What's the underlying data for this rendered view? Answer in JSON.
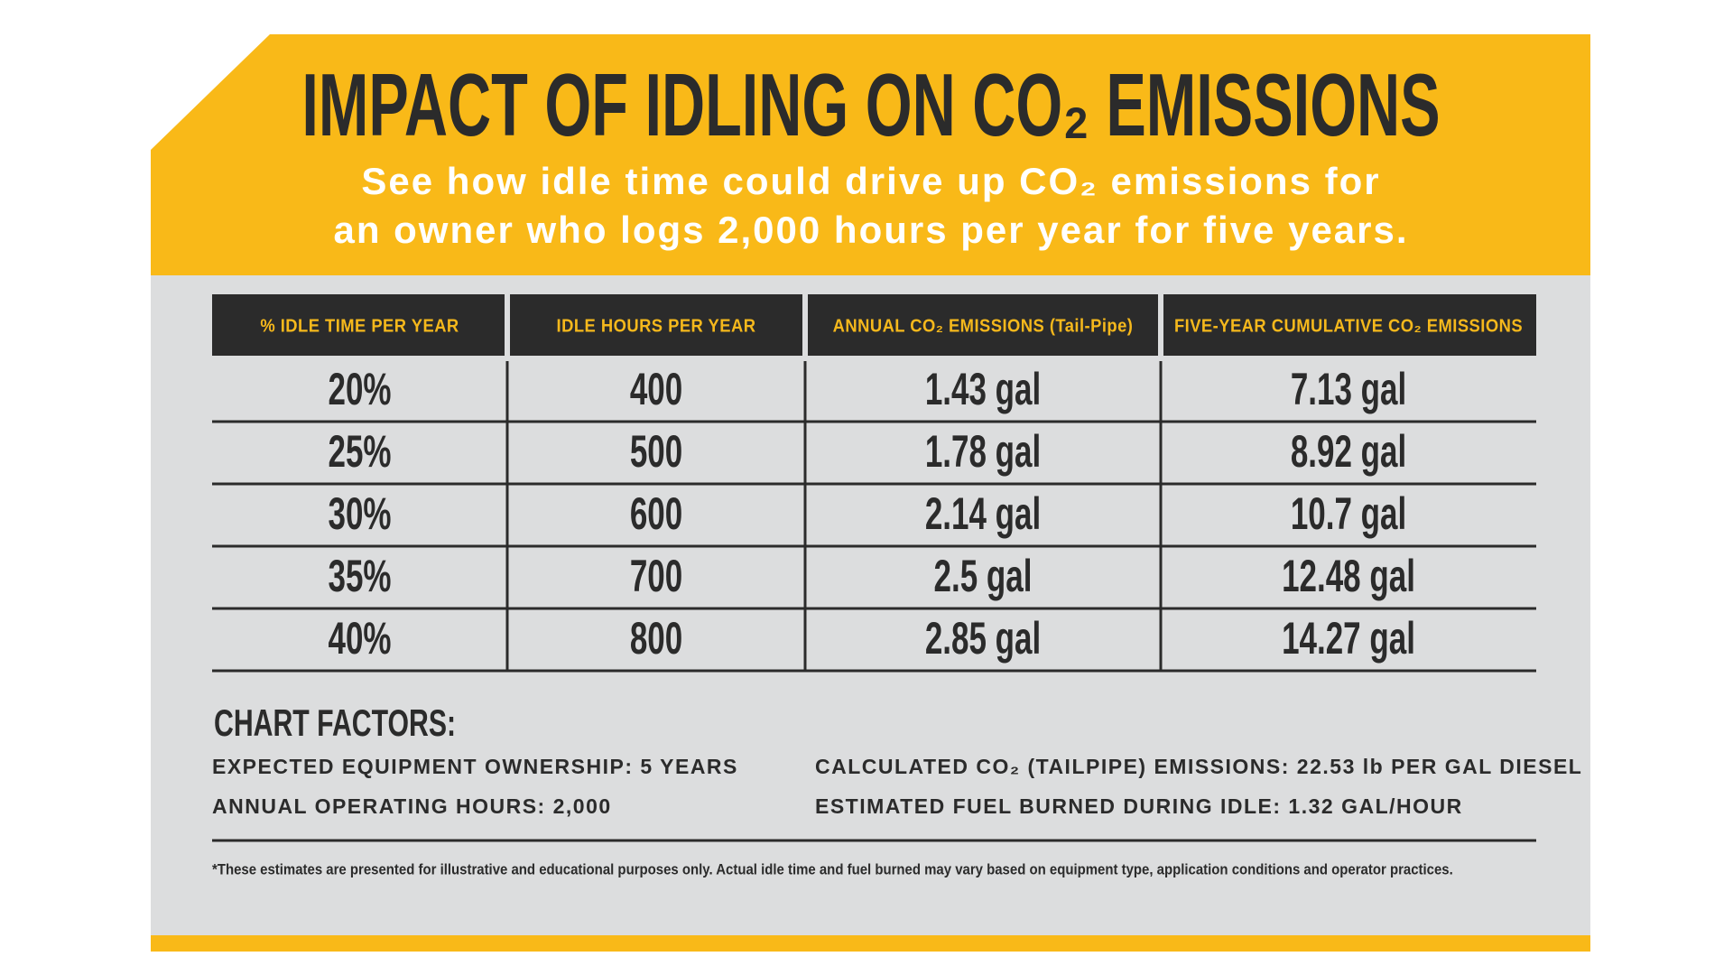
{
  "header": {
    "title": "IMPACT OF IDLING ON CO₂ EMISSIONS",
    "subtitle_lines": [
      "See how idle time could drive up CO₂ emissions for",
      "an owner who logs 2,000 hours per year for five years."
    ]
  },
  "table": {
    "columns": [
      "% IDLE TIME PER YEAR",
      "IDLE HOURS PER YEAR",
      "ANNUAL CO₂ EMISSIONS (Tail-Pipe)",
      "FIVE-YEAR CUMULATIVE CO₂ EMISSIONS"
    ],
    "rows": [
      [
        "20%",
        "400",
        "1.43 gal",
        "7.13 gal"
      ],
      [
        "25%",
        "500",
        "1.78 gal",
        "8.92 gal"
      ],
      [
        "30%",
        "600",
        "2.14 gal",
        "10.7 gal"
      ],
      [
        "35%",
        "700",
        "2.5 gal",
        "12.48 gal"
      ],
      [
        "40%",
        "800",
        "2.85 gal",
        "14.27 gal"
      ]
    ]
  },
  "factors": {
    "heading": "CHART FACTORS:",
    "items": [
      "EXPECTED EQUIPMENT OWNERSHIP: 5 YEARS",
      "CALCULATED CO₂ (TAILPIPE) EMISSIONS: 22.53 lb PER GAL DIESEL",
      "ANNUAL OPERATING HOURS: 2,000",
      "ESTIMATED FUEL BURNED DURING IDLE: 1.32 GAL/HOUR"
    ]
  },
  "footnote": "*These estimates are presented for illustrative and educational purposes only. Actual idle time and fuel burned may vary based on equipment type, application conditions and operator practices."
}
